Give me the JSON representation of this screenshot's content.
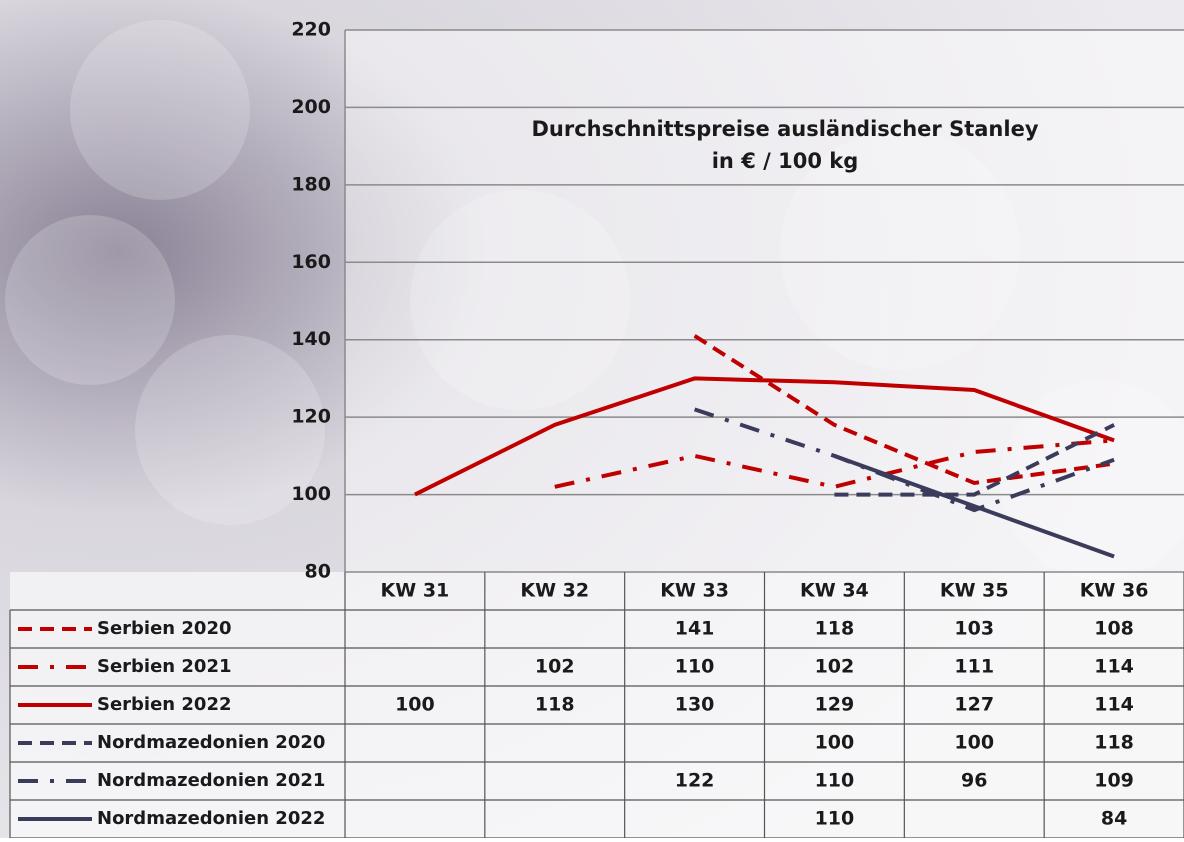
{
  "chart_data": {
    "type": "line",
    "title": "Durchschnittspreise ausländischer Stanley",
    "subtitle": "in € / 100 kg",
    "categories": [
      "KW 31",
      "KW 32",
      "KW 33",
      "KW 34",
      "KW 35",
      "KW 36"
    ],
    "series": [
      {
        "name": "Serbien 2020",
        "color": "#c00000",
        "dash": "dashed",
        "values": [
          null,
          null,
          141,
          118,
          103,
          108
        ]
      },
      {
        "name": "Serbien 2021",
        "color": "#c00000",
        "dash": "dashdot",
        "values": [
          null,
          102,
          110,
          102,
          111,
          114
        ]
      },
      {
        "name": "Serbien 2022",
        "color": "#c00000",
        "dash": "solid",
        "values": [
          100,
          118,
          130,
          129,
          127,
          114
        ]
      },
      {
        "name": "Nordmazedonien 2020",
        "color": "#3b3b5c",
        "dash": "dashed",
        "values": [
          null,
          null,
          null,
          100,
          100,
          118
        ]
      },
      {
        "name": "Nordmazedonien 2021",
        "color": "#3b3b5c",
        "dash": "dashdot",
        "values": [
          null,
          null,
          122,
          110,
          96,
          109
        ]
      },
      {
        "name": "Nordmazedonien 2022",
        "color": "#3b3b5c",
        "dash": "solid",
        "values": [
          null,
          null,
          null,
          110,
          null,
          84
        ]
      }
    ],
    "ylim": [
      80,
      220
    ],
    "yticks": [
      80,
      100,
      120,
      140,
      160,
      180,
      200,
      220
    ],
    "grid": true,
    "connect_gaps": true,
    "data_table": true
  }
}
